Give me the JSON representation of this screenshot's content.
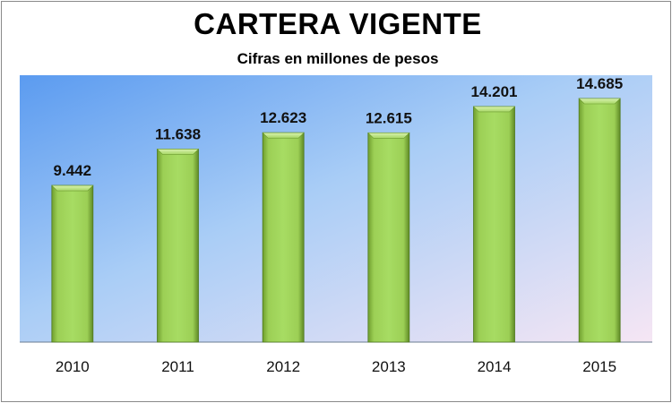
{
  "chart_data": {
    "type": "bar",
    "title": "CARTERA VIGENTE",
    "subtitle": "Cifras en millones de pesos",
    "categories": [
      "2010",
      "2011",
      "2012",
      "2013",
      "2014",
      "2015"
    ],
    "values": [
      9442,
      11638,
      12623,
      12615,
      14201,
      14685
    ],
    "value_labels": [
      "9.442",
      "11.638",
      "12.623",
      "12.615",
      "14.201",
      "14.685"
    ],
    "xlabel": "",
    "ylabel": "",
    "ylim": [
      0,
      16000
    ],
    "grid": false,
    "legend": "none",
    "bar_color": "#92d050",
    "plot_background": [
      "#5b9bf0",
      "#f6e6f4"
    ]
  }
}
